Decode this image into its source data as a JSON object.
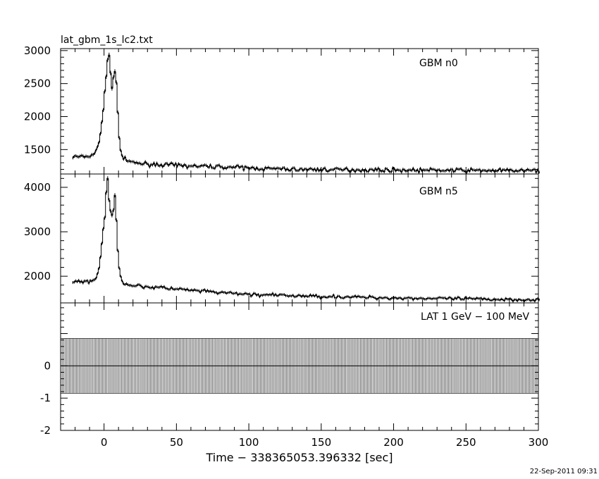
{
  "file_title": "lat_gbm_1s_lc2.txt",
  "timestamp": "22-Sep-2011 09:31",
  "chart_data": {
    "type": "line",
    "xlabel": "Time − 338365053.396332 [sec]",
    "xlim": [
      -30,
      300
    ],
    "xticks": [
      0,
      50,
      100,
      150,
      200,
      250,
      300
    ],
    "panels": [
      {
        "name": "GBM n0",
        "ylim": [
          1130,
          3030
        ],
        "yticks": [
          1500,
          2000,
          2500,
          3000
        ],
        "profile": {
          "x": [
            -22,
            -15,
            -10,
            -6,
            -4,
            -2,
            0,
            1,
            2,
            3,
            4,
            5,
            6,
            7,
            8,
            9,
            10,
            11,
            13,
            15,
            20,
            30,
            40,
            60,
            80,
            100,
            130,
            160,
            200,
            250,
            300
          ],
          "y": [
            1390,
            1390,
            1400,
            1470,
            1600,
            1900,
            2380,
            2600,
            2800,
            2960,
            2700,
            2420,
            2580,
            2700,
            2500,
            2050,
            1700,
            1480,
            1360,
            1330,
            1300,
            1280,
            1270,
            1250,
            1240,
            1220,
            1200,
            1195,
            1190,
            1185,
            1180
          ]
        },
        "noise": 30
      },
      {
        "name": "GBM n5",
        "ylim": [
          1400,
          4300
        ],
        "yticks": [
          2000,
          3000,
          4000
        ],
        "profile": {
          "x": [
            -22,
            -15,
            -10,
            -6,
            -4,
            -2,
            0,
            1,
            2,
            3,
            4,
            5,
            6,
            7,
            8,
            9,
            10,
            11,
            13,
            15,
            20,
            30,
            40,
            60,
            80,
            100,
            130,
            160,
            200,
            250,
            300
          ],
          "y": [
            1880,
            1880,
            1890,
            1950,
            2150,
            2700,
            3380,
            3800,
            4180,
            3700,
            3450,
            3350,
            3550,
            3800,
            3300,
            2600,
            2200,
            2000,
            1850,
            1820,
            1790,
            1760,
            1740,
            1680,
            1630,
            1590,
            1560,
            1540,
            1510,
            1490,
            1470
          ]
        },
        "noise": 35
      },
      {
        "name": "LAT 1 GeV − 100 MeV",
        "ylim": [
          -2,
          1.95
        ],
        "yticks": [
          -2,
          -1,
          0
        ],
        "bin_start": -30,
        "bin_end": 300,
        "bin_width": 1,
        "bin_low": -0.85,
        "bin_high": 0.85,
        "zero_line": 0
      }
    ]
  }
}
